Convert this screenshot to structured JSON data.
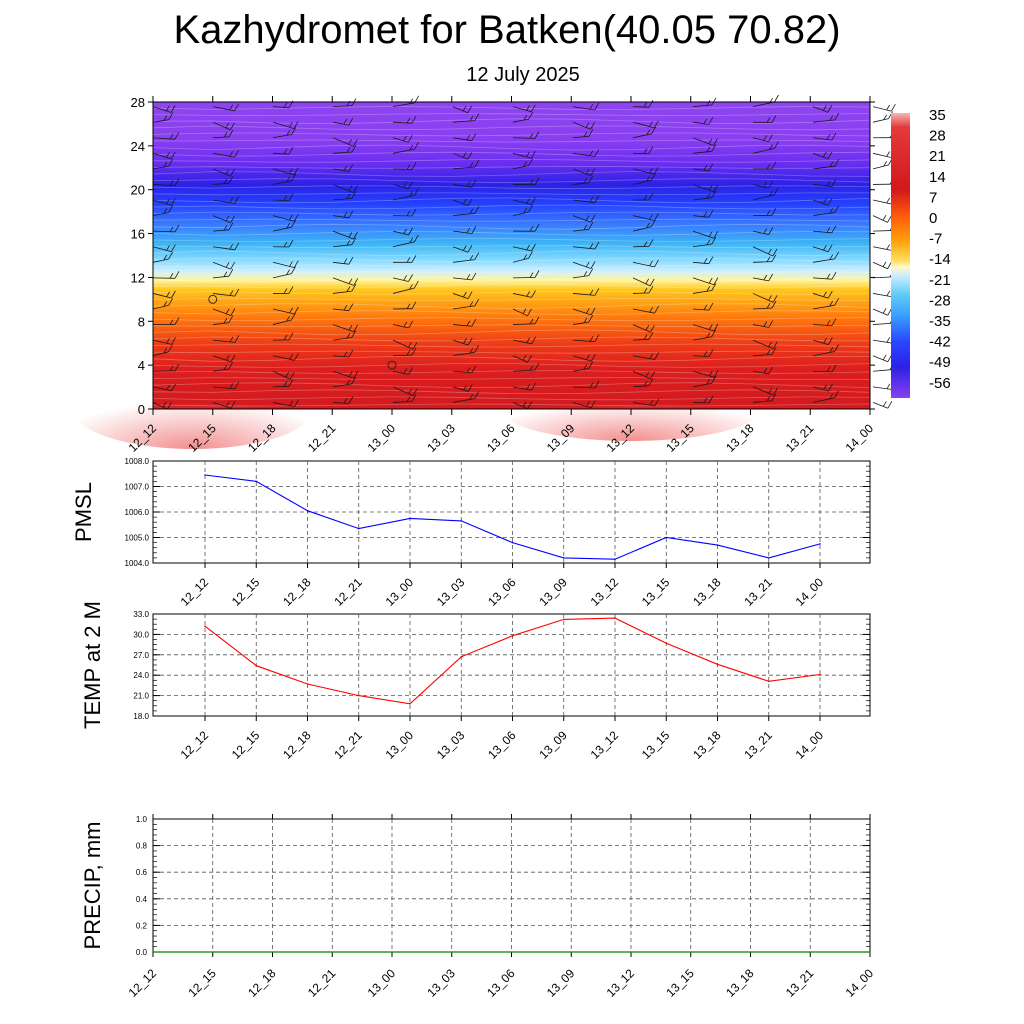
{
  "title": "Kazhydromet for Batken(40.05 70.82)",
  "subtitle": "12 July 2025",
  "chart_data": [
    {
      "type": "heatmap",
      "name": "upper-air temperature and wind cross-section",
      "x_labels": [
        "12_12",
        "12_15",
        "12_18",
        "12_21",
        "13_00",
        "13_03",
        "13_06",
        "13_09",
        "13_12",
        "13_15",
        "13_18",
        "13_21",
        "14_00"
      ],
      "y_ticks": [
        0,
        4,
        8,
        12,
        16,
        20,
        24,
        28
      ],
      "ylim": [
        0,
        28
      ],
      "colorbar_labels": [
        "35",
        "28",
        "21",
        "14",
        "7",
        "0",
        "-7",
        "-14",
        "-21",
        "-28",
        "-35",
        "-42",
        "-49",
        "-56"
      ],
      "colorbar_range": [
        -63,
        42
      ],
      "contour_description": "temperature decreasing with height: ~33 near surface, ~14 at 12, ~-14 at 14.5, ~-42 at 18, ~-56 at 21, ~-62 above 24",
      "colors": {
        "warm": "#d71920",
        "hot": "#f08080",
        "orange": "#ff8c00",
        "yellow": "#ffee00",
        "cyan": "#3cc8f0",
        "blue": "#2040ff",
        "purple": "#8a3ff0"
      }
    },
    {
      "type": "line",
      "ylabel": "PMSL",
      "ylim": [
        1004.0,
        1008.0
      ],
      "y_ticks": [
        "1004.0",
        "1005.0",
        "1006.0",
        "1007.0",
        "1008.0"
      ],
      "categories": [
        "12_12",
        "12_15",
        "12_18",
        "12_21",
        "13_00",
        "13_03",
        "13_06",
        "13_09",
        "13_12",
        "13_15",
        "13_18",
        "13_21",
        "14_00"
      ],
      "series": [
        {
          "values": [
            1007.45,
            1007.2,
            1006.05,
            1005.35,
            1005.75,
            1005.65,
            1004.8,
            1004.2,
            1004.15,
            1005.0,
            1004.7,
            1004.2,
            1004.75
          ],
          "color": "#0000ff"
        }
      ]
    },
    {
      "type": "line",
      "ylabel": "TEMP at 2 M",
      "ylim": [
        18.0,
        33.0
      ],
      "y_ticks": [
        "18.0",
        "21.0",
        "24.0",
        "27.0",
        "30.0",
        "33.0"
      ],
      "categories": [
        "12_12",
        "12_15",
        "12_18",
        "12_21",
        "13_00",
        "13_03",
        "13_06",
        "13_09",
        "13_12",
        "13_15",
        "13_18",
        "13_21",
        "14_00"
      ],
      "series": [
        {
          "values": [
            31.2,
            25.4,
            22.7,
            21.0,
            19.8,
            26.7,
            29.8,
            32.2,
            32.4,
            28.7,
            25.6,
            23.1,
            24.1
          ],
          "color": "#ff0000"
        }
      ]
    },
    {
      "type": "line",
      "ylabel": "PRECIP, mm",
      "ylim": [
        0.0,
        1.0
      ],
      "y_ticks": [
        "0.0",
        "0.2",
        "0.4",
        "0.6",
        "0.8",
        "1.0"
      ],
      "categories": [
        "12_12",
        "12_15",
        "12_18",
        "12_21",
        "13_00",
        "13_03",
        "13_06",
        "13_09",
        "13_12",
        "13_15",
        "13_18",
        "13_21",
        "14_00"
      ],
      "series": [
        {
          "values": [
            0,
            0,
            0,
            0,
            0,
            0,
            0,
            0,
            0,
            0,
            0,
            0,
            0
          ],
          "color": "#008000"
        }
      ]
    }
  ]
}
